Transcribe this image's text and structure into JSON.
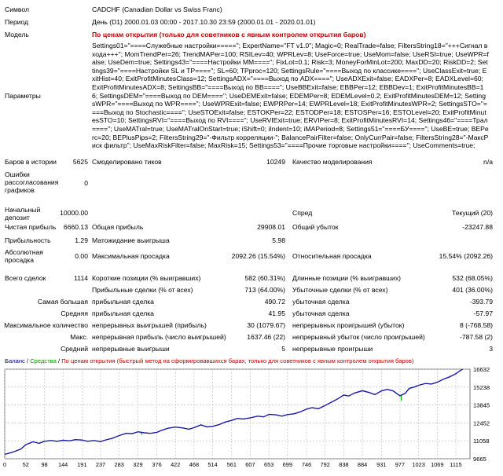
{
  "rows": {
    "symbol": {
      "label": "Символ",
      "value": "CADCHF (Canadian Dollar vs Swiss Franc)"
    },
    "period": {
      "label": "Период",
      "value": "День (D1) 2000.01.03 00:00 - 2017.10.30 23:59 (2000.01.01 - 2020.01.01)"
    },
    "model": {
      "label": "Модель",
      "value": "По ценам открытия (только для советников с явным контролем открытия баров)"
    },
    "params": {
      "label": "Параметры",
      "value": "Settings01=\"====Служебные настройки=====\"; ExpertName=\"FT v1.0\"; Magic=0; RealTrade=false; FiltersString18=\"+++Сигнал входа+++\"; MomTrendPer=26; TrendMAPer=100; RSILev=40; WPRLev=8; UseForce=true; UseMom=false; UseRSI=true; UseWPR=false; UseDem=true; Settings43=\"====Настройки ММ====\"; FixLot=0.1; Risk=3; MoneyForMinLot=200; MaxDD=20; RiskDD=2; Settings39=\"====Настройки SL и TP====\"; SL=60; TPproc=120; SettingsRule=\"====Выход по классике====\"; UseClassExit=true; ExitHist=40; ExitProfitMinutesClass=12; SettingsADX=\"====Выход по ADX====\"; UseADXExit=false; EADXPer=8; EADXLevel=60; ExitProfitMinutesADX=8; SettingsBB=\"====Выход по BB====\"; UseBBExit=false; EBBPer=12; EBBDev=1; ExitProfitMinutesBB=16; SettingsDEM=\"====Выход по DEM====\"; UseDEMExit=false; EDEMPer=8; EDEMLevel=0.2; ExitProfitMinutesDEM=12; SettingsWPR=\"====Выход по WPR====\"; UseWPRExit=false; EWPRPer=14; EWPRLevel=18; ExitProfitMinutesWPR=2; SettingsSTO=\"====Выход по Stochastic====\"; UseSTOExit=false; ESTOKPer=22; ESTODPer=18; ESTOSPer=16; ESTOLevel=20; ExitProfitMinutesSTO=10; SettingsRVI=\"====Выход по RVI====\"; UseRVIExit=true; ERVIPer=8; ExitProfitMinutesRVI=14; Settings46=\"====Трал====\"; UseMATral=true; UseMATralOnStart=true; iShift=0; iIndent=10; iMAPeriod=8; Settings51=\"====БУ====\"; UseBE=true; BEPerc=20; BEPlusPips=2; FiltersString29=\"-Фильтр корреляции-\"; BalancePairFilter=false; OnlyCurrPair=false; FiltersString28=\"-МаксРиск фильтр\"; UseMaxRiskFilter=false; MaxRisk=15; Settings53=\"====Прочие торговые настройки====\"; UseComments=true;"
    },
    "bars": {
      "label": "Баров в истории",
      "value": "5625"
    },
    "ticks": {
      "label": "Смоделировано тиков",
      "value": "10249"
    },
    "quality": {
      "label": "Качество моделирования",
      "value": "n/a"
    },
    "errors": {
      "label": "Ошибки рассогласования графиков",
      "value": "0"
    },
    "deposit": {
      "label": "Начальный депозит",
      "value": "10000.00"
    },
    "spread": {
      "label": "Спред",
      "value": "Текущий (20)"
    },
    "net_profit": {
      "label": "Чистая прибыль",
      "value": "6660.13"
    },
    "gross_profit": {
      "label": "Общая прибыль",
      "value": "29908.01"
    },
    "gross_loss": {
      "label": "Общий убыток",
      "value": "-23247.88"
    },
    "profit_factor": {
      "label": "Прибыльность",
      "value": "1.29"
    },
    "expected_payoff": {
      "label": "Матожидание выигрыша",
      "value": "5.98"
    },
    "abs_drawdown": {
      "label": "Абсолютная просадка",
      "value": "0.00"
    },
    "max_drawdown": {
      "label": "Максимальная просадка",
      "value": "2092.26 (15.54%)"
    },
    "rel_drawdown": {
      "label": "Относительная просадка",
      "value": "15.54% (2092.26)"
    },
    "total_trades": {
      "label": "Всего сделок",
      "value": "1114"
    },
    "short_pos": {
      "label": "Короткие позиции (% выигравших)",
      "value": "582 (60.31%)"
    },
    "long_pos": {
      "label": "Длинные позиции (% выигравших)",
      "value": "532 (68.05%)"
    },
    "profit_trades": {
      "label": "Прибыльные сделки (% от всех)",
      "value": "713 (64.00%)"
    },
    "loss_trades": {
      "label": "Убыточные сделки (% от всех)",
      "value": "401 (36.00%)"
    },
    "largest": {
      "label": "Самая большая",
      "p_label": "прибыльная сделка",
      "p_value": "490.72",
      "l_label": "убыточная сделка",
      "l_value": "-393.79"
    },
    "average": {
      "label": "Средняя",
      "p_label": "прибыльная сделка",
      "p_value": "41.95",
      "l_label": "убыточная сделка",
      "l_value": "-57.97"
    },
    "max_consec": {
      "label": "Максимальное количество",
      "p_label": "непрерывных выигрышей (прибыль)",
      "p_value": "30 (1079.67)",
      "l_label": "непрерывных проигрышей (убыток)",
      "l_value": "8 (-768.58)"
    },
    "max_consec2": {
      "label": "Макс.",
      "p_label": "непрерывная прибыль (число выигрышей)",
      "p_value": "1637.46 (22)",
      "l_label": "непрерывный убыток (число проигрышей)",
      "l_value": "-787.58 (2)"
    },
    "avg_consec": {
      "label": "Средний",
      "p_label": "непрерывные выигрыши",
      "p_value": "5",
      "l_label": "непрерывные проигрыши",
      "l_value": "3"
    }
  },
  "legend": {
    "balance": "Баланс",
    "sep": " / ",
    "equity": "Средства",
    "sep2": " / ",
    "note": "По ценам открытия (быстрый метод на сформировавшихся барах, только для советников с явным контролем открытия баров)"
  },
  "colors": {
    "balance_line": "#1a1aa6",
    "equity_spike": "#00b000",
    "grid": "#b8b8b8",
    "note": "#c00000"
  },
  "chart_data": {
    "type": "line",
    "x_ticks": [
      "0",
      "52",
      "98",
      "144",
      "191",
      "237",
      "283",
      "329",
      "376",
      "422",
      "468",
      "514",
      "561",
      "607",
      "653",
      "699",
      "746",
      "792",
      "838",
      "884",
      "931",
      "977",
      "1023",
      "1069",
      "1115"
    ],
    "y_ticks": [
      "16632",
      "15238",
      "13845",
      "12452",
      "11058",
      "9665"
    ],
    "ylim": [
      9665,
      16632
    ],
    "xlim": [
      0,
      1150
    ],
    "series": [
      {
        "name": "Баланс",
        "values": [
          [
            0,
            10000
          ],
          [
            20,
            10180
          ],
          [
            40,
            10420
          ],
          [
            52,
            10760
          ],
          [
            70,
            10980
          ],
          [
            85,
            10860
          ],
          [
            98,
            11020
          ],
          [
            115,
            11080
          ],
          [
            130,
            11020
          ],
          [
            144,
            11100
          ],
          [
            160,
            11060
          ],
          [
            175,
            11150
          ],
          [
            191,
            11120
          ],
          [
            205,
            11020
          ],
          [
            220,
            11080
          ],
          [
            237,
            11000
          ],
          [
            250,
            11130
          ],
          [
            265,
            11240
          ],
          [
            283,
            11470
          ],
          [
            300,
            11640
          ],
          [
            315,
            11620
          ],
          [
            329,
            11760
          ],
          [
            345,
            11680
          ],
          [
            360,
            11640
          ],
          [
            376,
            11720
          ],
          [
            390,
            11900
          ],
          [
            405,
            12050
          ],
          [
            422,
            12130
          ],
          [
            440,
            12060
          ],
          [
            455,
            11960
          ],
          [
            468,
            12080
          ],
          [
            485,
            12300
          ],
          [
            500,
            12140
          ],
          [
            514,
            12180
          ],
          [
            530,
            12320
          ],
          [
            545,
            12520
          ],
          [
            561,
            12650
          ],
          [
            575,
            12800
          ],
          [
            590,
            12760
          ],
          [
            607,
            12840
          ],
          [
            625,
            12980
          ],
          [
            640,
            12920
          ],
          [
            653,
            13110
          ],
          [
            670,
            13080
          ],
          [
            685,
            12980
          ],
          [
            699,
            13100
          ],
          [
            715,
            13160
          ],
          [
            730,
            13310
          ],
          [
            746,
            13520
          ],
          [
            760,
            13640
          ],
          [
            775,
            13550
          ],
          [
            792,
            13800
          ],
          [
            810,
            14100
          ],
          [
            825,
            14360
          ],
          [
            838,
            14620
          ],
          [
            850,
            14540
          ],
          [
            865,
            14780
          ],
          [
            884,
            14960
          ],
          [
            900,
            14820
          ],
          [
            915,
            14660
          ],
          [
            931,
            14940
          ],
          [
            945,
            15060
          ],
          [
            960,
            14940
          ],
          [
            977,
            14560
          ],
          [
            990,
            14750
          ],
          [
            1000,
            15140
          ],
          [
            1015,
            15270
          ],
          [
            1023,
            15380
          ],
          [
            1040,
            15520
          ],
          [
            1055,
            15480
          ],
          [
            1069,
            15620
          ],
          [
            1085,
            15860
          ],
          [
            1100,
            16040
          ],
          [
            1115,
            16280
          ],
          [
            1125,
            16500
          ],
          [
            1132,
            16632
          ]
        ]
      }
    ],
    "equity_spikes": [
      [
        338,
        11520
      ],
      [
        980,
        14180
      ]
    ]
  }
}
